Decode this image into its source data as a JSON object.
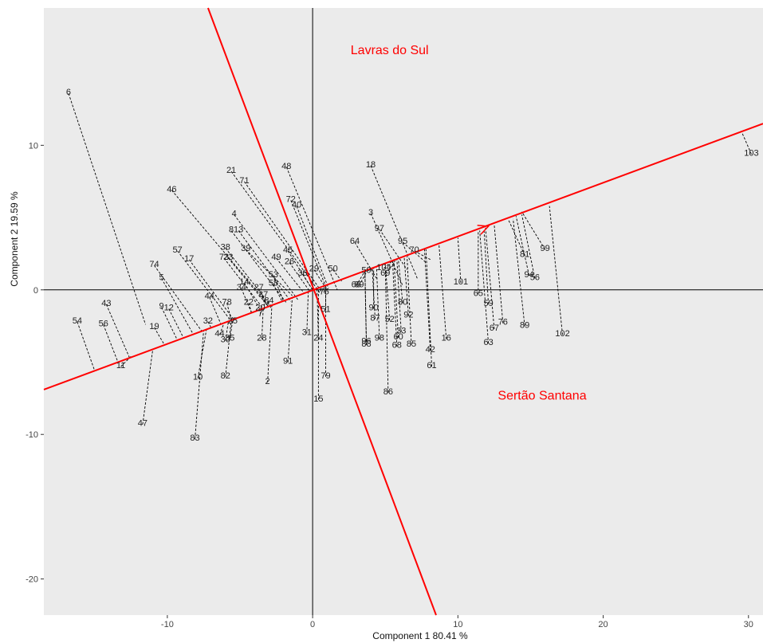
{
  "chart_data": {
    "type": "scatter",
    "title": "",
    "xlabel": "Component 1 80.41 %",
    "ylabel": "Component 2 19.59 %",
    "xlim": [
      -18.5,
      31
    ],
    "ylim": [
      -22.5,
      19.5
    ],
    "xticks": [
      -10,
      0,
      10,
      20,
      30
    ],
    "yticks": [
      -20,
      -10,
      0,
      10
    ],
    "grid": false,
    "background": "#ebebeb",
    "annotation_color": "#ff0000",
    "projection_color": "#000000",
    "annotations": [
      {
        "text": "Lavras do Sul",
        "x": 5.3,
        "y": 16.3
      },
      {
        "text": "Sertão Santana",
        "x": 15.8,
        "y": -7.6
      }
    ],
    "axis_lines": [
      {
        "name": "axis-x-reference",
        "from": [
          -18.5,
          0
        ],
        "to": [
          31,
          0
        ]
      },
      {
        "name": "axis-y-reference",
        "from": [
          0,
          -22.5
        ],
        "to": [
          0,
          19.5
        ]
      }
    ],
    "red_lines": [
      {
        "name": "red-axis-line-1",
        "from": [
          -18.5,
          -6.9
        ],
        "to": [
          31,
          11.5
        ]
      },
      {
        "name": "red-axis-line-2",
        "from": [
          -7.2,
          19.5
        ],
        "to": [
          8.5,
          -22.5
        ]
      }
    ],
    "arrow": {
      "from": [
        9.0,
        3.2
      ],
      "to": [
        12.1,
        4.4
      ]
    },
    "points": [
      {
        "label": "6",
        "x": -16.8,
        "y": 13.7,
        "proj": [
          -11.5,
          -2.4
        ]
      },
      {
        "label": "103",
        "x": 30.2,
        "y": 9.5,
        "proj": [
          29.5,
          11.0
        ]
      },
      {
        "label": "18",
        "x": 4.0,
        "y": 8.7,
        "proj": [
          7.2,
          0.8
        ]
      },
      {
        "label": "48",
        "x": -1.8,
        "y": 8.6,
        "proj": [
          1.7,
          0.0
        ]
      },
      {
        "label": "21",
        "x": -5.6,
        "y": 8.3,
        "proj": [
          0.5,
          -0.2
        ]
      },
      {
        "label": "71",
        "x": -4.7,
        "y": 7.6,
        "proj": [
          0.6,
          -0.1
        ]
      },
      {
        "label": "46",
        "x": -9.7,
        "y": 7.0,
        "proj": [
          -2.8,
          -1.3
        ]
      },
      {
        "label": "72",
        "x": -1.5,
        "y": 6.3,
        "proj": [
          1.0,
          0.0
        ]
      },
      {
        "label": "40",
        "x": -1.1,
        "y": 5.9,
        "proj": [
          1.1,
          0.1
        ]
      },
      {
        "label": "3",
        "x": 4.0,
        "y": 5.4,
        "proj": [
          6.2,
          0.3
        ]
      },
      {
        "label": "4",
        "x": -5.4,
        "y": 5.3,
        "proj": [
          -1.0,
          -0.7
        ]
      },
      {
        "label": "97",
        "x": 4.6,
        "y": 4.3,
        "proj": [
          6.5,
          1.4
        ]
      },
      {
        "label": "8",
        "x": -5.6,
        "y": 4.2,
        "proj": [
          -1.8,
          -0.9
        ]
      },
      {
        "label": "13",
        "x": -5.1,
        "y": 4.2,
        "proj": [
          -1.5,
          -0.8
        ]
      },
      {
        "label": "64",
        "x": 2.9,
        "y": 3.4,
        "proj": [
          4.4,
          0.8
        ]
      },
      {
        "label": "95",
        "x": 6.2,
        "y": 3.4,
        "proj": [
          7.8,
          1.9
        ]
      },
      {
        "label": "70",
        "x": 7.0,
        "y": 2.8,
        "proj": [
          8.1,
          2.1
        ]
      },
      {
        "label": "99",
        "x": 16.0,
        "y": 2.9,
        "proj": [
          14.4,
          5.4
        ]
      },
      {
        "label": "81",
        "x": 14.6,
        "y": 2.5,
        "proj": [
          13.5,
          4.8
        ]
      },
      {
        "label": "38",
        "x": -6.0,
        "y": 3.0,
        "proj": [
          -2.8,
          -1.2
        ]
      },
      {
        "label": "39",
        "x": -4.6,
        "y": 2.9,
        "proj": [
          -1.4,
          -0.4
        ]
      },
      {
        "label": "57",
        "x": -9.3,
        "y": 2.8,
        "proj": [
          -5.5,
          -2.3
        ]
      },
      {
        "label": "45",
        "x": -1.7,
        "y": 2.8,
        "proj": [
          0.0,
          0.0
        ]
      },
      {
        "label": "73",
        "x": -6.1,
        "y": 2.3,
        "proj": [
          -3.4,
          -1.3
        ]
      },
      {
        "label": "23",
        "x": -5.8,
        "y": 2.3,
        "proj": [
          -3.0,
          -1.2
        ]
      },
      {
        "label": "17",
        "x": -8.5,
        "y": 2.2,
        "proj": [
          -5.4,
          -2.1
        ]
      },
      {
        "label": "49",
        "x": -2.5,
        "y": 2.3,
        "proj": [
          -0.6,
          -0.2
        ]
      },
      {
        "label": "26",
        "x": -1.6,
        "y": 2.0,
        "proj": [
          -0.2,
          -0.1
        ]
      },
      {
        "label": "74",
        "x": -10.9,
        "y": 1.8,
        "proj": [
          -7.6,
          -2.9
        ]
      },
      {
        "label": "29",
        "x": 0.1,
        "y": 1.5,
        "proj": [
          0.8,
          0.3
        ]
      },
      {
        "label": "50",
        "x": 1.4,
        "y": 1.5,
        "proj": [
          2.0,
          0.6
        ]
      },
      {
        "label": "59",
        "x": 3.7,
        "y": 1.4,
        "proj": [
          4.4,
          1.6
        ]
      },
      {
        "label": "104",
        "x": 4.9,
        "y": 1.6,
        "proj": [
          5.6,
          2.1
        ]
      },
      {
        "label": "69",
        "x": 5.0,
        "y": 1.2,
        "proj": [
          5.7,
          2.0
        ]
      },
      {
        "label": "36",
        "x": -0.7,
        "y": 1.2,
        "proj": [
          0.0,
          0.0
        ]
      },
      {
        "label": "53",
        "x": -2.7,
        "y": 1.1,
        "proj": [
          -2.0,
          -0.8
        ]
      },
      {
        "label": "5",
        "x": -10.4,
        "y": 0.9,
        "proj": [
          -8.2,
          -3.1
        ]
      },
      {
        "label": "94",
        "x": 14.9,
        "y": 1.1,
        "proj": [
          14.0,
          5.1
        ]
      },
      {
        "label": "56",
        "x": 15.3,
        "y": 0.9,
        "proj": [
          14.4,
          5.2
        ]
      },
      {
        "label": "101",
        "x": 10.2,
        "y": 0.6,
        "proj": [
          10.0,
          3.6
        ]
      },
      {
        "label": "14",
        "x": -4.7,
        "y": 0.6,
        "proj": [
          -3.6,
          -1.4
        ]
      },
      {
        "label": "58",
        "x": -2.7,
        "y": 0.5,
        "proj": [
          -2.1,
          -0.8
        ]
      },
      {
        "label": "68",
        "x": 3.0,
        "y": 0.4,
        "proj": [
          3.6,
          1.3
        ]
      },
      {
        "label": "89",
        "x": 3.2,
        "y": 0.4,
        "proj": [
          3.8,
          1.4
        ]
      },
      {
        "label": "34",
        "x": -4.9,
        "y": 0.2,
        "proj": [
          -4.2,
          -1.6
        ]
      },
      {
        "label": "27",
        "x": -3.7,
        "y": 0.2,
        "proj": [
          -3.1,
          -1.2
        ]
      },
      {
        "label": "75",
        "x": 0.8,
        "y": -0.1,
        "proj": [
          0.8,
          0.3
        ]
      },
      {
        "label": "65",
        "x": 11.4,
        "y": -0.2,
        "proj": [
          11.4,
          4.0
        ]
      },
      {
        "label": "37",
        "x": -3.4,
        "y": -0.3,
        "proj": [
          -3.3,
          -1.3
        ]
      },
      {
        "label": "44",
        "x": -7.1,
        "y": -0.4,
        "proj": [
          -6.3,
          -2.4
        ]
      },
      {
        "label": "78",
        "x": -5.9,
        "y": -0.8,
        "proj": [
          -5.6,
          -2.1
        ]
      },
      {
        "label": "22",
        "x": -4.4,
        "y": -0.8,
        "proj": [
          -4.2,
          -1.6
        ]
      },
      {
        "label": "84",
        "x": -3.0,
        "y": -0.7,
        "proj": [
          -3.1,
          -1.2
        ]
      },
      {
        "label": "80",
        "x": 6.2,
        "y": -0.8,
        "proj": [
          5.9,
          2.1
        ]
      },
      {
        "label": "59",
        "x": 12.1,
        "y": -0.9,
        "proj": [
          11.8,
          4.2
        ]
      },
      {
        "label": "43",
        "x": -14.2,
        "y": -0.9,
        "proj": [
          -12.6,
          -4.7
        ]
      },
      {
        "label": "9",
        "x": -10.4,
        "y": -1.1,
        "proj": [
          -9.3,
          -3.5
        ]
      },
      {
        "label": "12",
        "x": -9.9,
        "y": -1.2,
        "proj": [
          -8.9,
          -3.3
        ]
      },
      {
        "label": "20",
        "x": -3.6,
        "y": -1.2,
        "proj": [
          -3.5,
          -1.3
        ]
      },
      {
        "label": "90",
        "x": 4.2,
        "y": -1.2,
        "proj": [
          4.2,
          1.5
        ]
      },
      {
        "label": "51",
        "x": 0.9,
        "y": -1.3,
        "proj": [
          0.9,
          0.3
        ]
      },
      {
        "label": "7",
        "x": -3.6,
        "y": -1.6,
        "proj": [
          -3.6,
          -1.4
        ]
      },
      {
        "label": "92",
        "x": 6.6,
        "y": -1.7,
        "proj": [
          6.3,
          2.3
        ]
      },
      {
        "label": "87",
        "x": 4.3,
        "y": -1.9,
        "proj": [
          4.1,
          1.5
        ]
      },
      {
        "label": "52",
        "x": 5.3,
        "y": -2.0,
        "proj": [
          5.0,
          1.8
        ]
      },
      {
        "label": "32",
        "x": -7.2,
        "y": -2.1,
        "proj": [
          -7.0,
          -2.6
        ]
      },
      {
        "label": "25",
        "x": -5.5,
        "y": -2.1,
        "proj": [
          -5.4,
          -2.0
        ]
      },
      {
        "label": "54",
        "x": -16.2,
        "y": -2.1,
        "proj": [
          -15.0,
          -5.6
        ]
      },
      {
        "label": "76",
        "x": 13.1,
        "y": -2.2,
        "proj": [
          12.5,
          4.5
        ]
      },
      {
        "label": "56",
        "x": -14.4,
        "y": -2.3,
        "proj": [
          -13.4,
          -5.0
        ]
      },
      {
        "label": "89",
        "x": 14.6,
        "y": -2.4,
        "proj": [
          13.8,
          4.9
        ]
      },
      {
        "label": "67",
        "x": 12.5,
        "y": -2.6,
        "proj": [
          11.9,
          4.3
        ]
      },
      {
        "label": "19",
        "x": -10.9,
        "y": -2.5,
        "proj": [
          -10.2,
          -3.8
        ]
      },
      {
        "label": "33",
        "x": 6.1,
        "y": -2.8,
        "proj": [
          5.8,
          2.1
        ]
      },
      {
        "label": "31",
        "x": -0.4,
        "y": -2.9,
        "proj": [
          -0.3,
          -0.1
        ]
      },
      {
        "label": "102",
        "x": 17.2,
        "y": -3.0,
        "proj": [
          16.3,
          5.8
        ]
      },
      {
        "label": "44",
        "x": -6.4,
        "y": -3.0,
        "proj": [
          -6.1,
          -2.3
        ]
      },
      {
        "label": "35",
        "x": -5.7,
        "y": -3.3,
        "proj": [
          -5.5,
          -2.1
        ]
      },
      {
        "label": "30",
        "x": -6.0,
        "y": -3.4,
        "proj": [
          -5.8,
          -2.2
        ]
      },
      {
        "label": "28",
        "x": -3.5,
        "y": -3.3,
        "proj": [
          -3.4,
          -1.3
        ]
      },
      {
        "label": "24",
        "x": 0.4,
        "y": -3.3,
        "proj": [
          0.3,
          0.1
        ]
      },
      {
        "label": "98",
        "x": 4.6,
        "y": -3.3,
        "proj": [
          4.4,
          1.6
        ]
      },
      {
        "label": "60",
        "x": 5.9,
        "y": -3.2,
        "proj": [
          5.6,
          2.0
        ]
      },
      {
        "label": "96",
        "x": 3.7,
        "y": -3.5,
        "proj": [
          3.6,
          1.3
        ]
      },
      {
        "label": "88",
        "x": 3.7,
        "y": -3.7,
        "proj": [
          3.6,
          1.3
        ]
      },
      {
        "label": "85",
        "x": 6.8,
        "y": -3.7,
        "proj": [
          6.5,
          2.3
        ]
      },
      {
        "label": "16",
        "x": 9.2,
        "y": -3.3,
        "proj": [
          8.7,
          3.1
        ]
      },
      {
        "label": "63",
        "x": 12.1,
        "y": -3.6,
        "proj": [
          11.5,
          4.1
        ]
      },
      {
        "label": "68",
        "x": 5.8,
        "y": -3.8,
        "proj": [
          5.5,
          2.0
        ]
      },
      {
        "label": "42",
        "x": 8.1,
        "y": -4.1,
        "proj": [
          7.7,
          2.8
        ]
      },
      {
        "label": "91",
        "x": -1.7,
        "y": -4.9,
        "proj": [
          -1.4,
          -0.5
        ]
      },
      {
        "label": "61",
        "x": 8.2,
        "y": -5.2,
        "proj": [
          7.8,
          2.8
        ]
      },
      {
        "label": "11",
        "x": -13.2,
        "y": -5.2,
        "proj": [
          -12.5,
          -4.6
        ]
      },
      {
        "label": "79",
        "x": 0.9,
        "y": -5.9,
        "proj": [
          0.9,
          0.3
        ]
      },
      {
        "label": "82",
        "x": -6.0,
        "y": -5.9,
        "proj": [
          -5.6,
          -2.1
        ]
      },
      {
        "label": "10",
        "x": -7.9,
        "y": -6.0,
        "proj": [
          -7.3,
          -2.7
        ]
      },
      {
        "label": "2",
        "x": -3.1,
        "y": -6.3,
        "proj": [
          -2.8,
          -1.0
        ]
      },
      {
        "label": "86",
        "x": 5.2,
        "y": -7.0,
        "proj": [
          5.0,
          1.8
        ]
      },
      {
        "label": "15",
        "x": 0.4,
        "y": -7.5,
        "proj": [
          0.4,
          0.1
        ]
      },
      {
        "label": "47",
        "x": -11.7,
        "y": -9.2,
        "proj": [
          -11.0,
          -4.1
        ]
      },
      {
        "label": "83",
        "x": -8.1,
        "y": -10.2,
        "proj": [
          -7.5,
          -2.8
        ]
      }
    ]
  }
}
